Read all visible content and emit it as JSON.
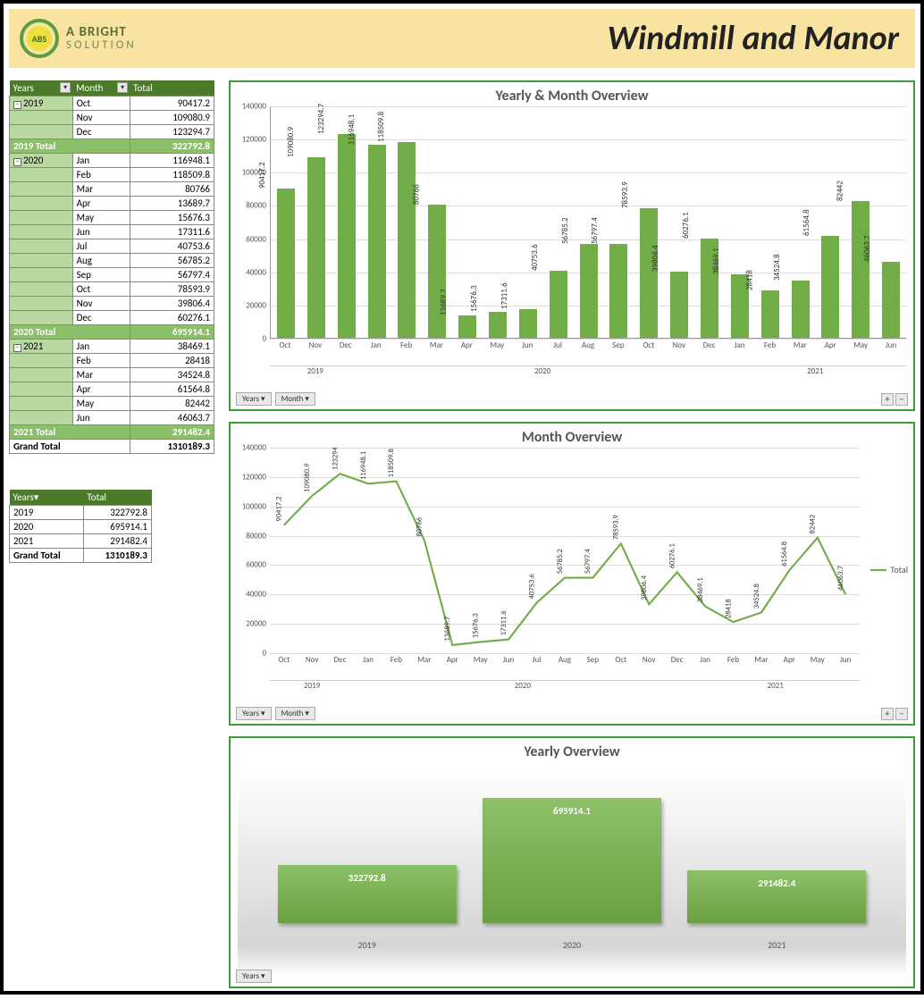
{
  "header": {
    "logo_badge": "ABS",
    "logo_line1": "A BRIGHT",
    "logo_line2": "SOLUTION",
    "title": "Windmill and Manor"
  },
  "colors": {
    "accent": "#70ad47",
    "accent_dark": "#4a7a2a",
    "accent_light": "#b8d8a0",
    "chart_border": "#3c9c3c",
    "header_bg": "#f8e3a1",
    "grid": "#dddddd",
    "text": "#333333"
  },
  "pivot": {
    "headers": [
      "Years",
      "Month",
      "Total"
    ],
    "rows": [
      {
        "year": "2019",
        "month": "Oct",
        "total": "90417.2",
        "first": true
      },
      {
        "year": "",
        "month": "Nov",
        "total": "109080.9"
      },
      {
        "year": "",
        "month": "Dec",
        "total": "123294.7"
      },
      {
        "subtotal": "2019 Total",
        "total": "322792.8"
      },
      {
        "year": "2020",
        "month": "Jan",
        "total": "116948.1",
        "first": true
      },
      {
        "year": "",
        "month": "Feb",
        "total": "118509.8"
      },
      {
        "year": "",
        "month": "Mar",
        "total": "80766"
      },
      {
        "year": "",
        "month": "Apr",
        "total": "13689.7"
      },
      {
        "year": "",
        "month": "May",
        "total": "15676.3"
      },
      {
        "year": "",
        "month": "Jun",
        "total": "17311.6"
      },
      {
        "year": "",
        "month": "Jul",
        "total": "40753.6"
      },
      {
        "year": "",
        "month": "Aug",
        "total": "56785.2"
      },
      {
        "year": "",
        "month": "Sep",
        "total": "56797.4"
      },
      {
        "year": "",
        "month": "Oct",
        "total": "78593.9"
      },
      {
        "year": "",
        "month": "Nov",
        "total": "39806.4"
      },
      {
        "year": "",
        "month": "Dec",
        "total": "60276.1"
      },
      {
        "subtotal": "2020 Total",
        "total": "695914.1"
      },
      {
        "year": "2021",
        "month": "Jan",
        "total": "38469.1",
        "first": true
      },
      {
        "year": "",
        "month": "Feb",
        "total": "28418"
      },
      {
        "year": "",
        "month": "Mar",
        "total": "34524.8"
      },
      {
        "year": "",
        "month": "Apr",
        "total": "61564.8"
      },
      {
        "year": "",
        "month": "May",
        "total": "82442"
      },
      {
        "year": "",
        "month": "Jun",
        "total": "46063.7"
      },
      {
        "subtotal": "2021 Total",
        "total": "291482.4"
      },
      {
        "grand": "Grand Total",
        "total": "1310189.3"
      }
    ]
  },
  "summary": {
    "headers": [
      "Years",
      "Total"
    ],
    "rows": [
      {
        "year": "2019",
        "total": "322792.8"
      },
      {
        "year": "2020",
        "total": "695914.1"
      },
      {
        "year": "2021",
        "total": "291482.4"
      }
    ],
    "grand_label": "Grand Total",
    "grand_total": "1310189.3"
  },
  "chart1": {
    "title": "Yearly & Month Overview",
    "type": "bar",
    "ylim": [
      0,
      140000
    ],
    "ytick_step": 20000,
    "bar_color": "#70ad47",
    "label_fontsize": 9,
    "months": [
      "Oct",
      "Nov",
      "Dec",
      "Jan",
      "Feb",
      "Mar",
      "Apr",
      "May",
      "Jun",
      "Jul",
      "Aug",
      "Sep",
      "Oct",
      "Nov",
      "Dec",
      "Jan",
      "Feb",
      "Mar",
      "Apr",
      "May",
      "Jun"
    ],
    "values": [
      90417.2,
      109080.9,
      123294.7,
      116948.1,
      118509.8,
      80766,
      13689.7,
      15676.3,
      17311.6,
      40753.6,
      56785.2,
      56797.4,
      78593.9,
      39806.4,
      60276.1,
      38469.1,
      28418,
      34524.8,
      61564.8,
      82442,
      46063.7
    ],
    "labels": [
      "90417.2",
      "109080.9",
      "123294.7",
      "116948.1",
      "118509.8",
      "80766",
      "13689.7",
      "15676.3",
      "17311.6",
      "40753.6",
      "56785.2",
      "56797.4",
      "78593.9",
      "39806.4",
      "60276.1",
      "38469.1",
      "28418",
      "34524.8",
      "61564.8",
      "82442",
      "46063.7"
    ],
    "year_groups": [
      {
        "label": "2019",
        "span": 3
      },
      {
        "label": "2020",
        "span": 12
      },
      {
        "label": "2021",
        "span": 6
      }
    ],
    "filters": [
      "Years",
      "Month"
    ]
  },
  "chart2": {
    "title": "Month Overview",
    "type": "line",
    "ylim": [
      0,
      140000
    ],
    "ytick_step": 20000,
    "line_color": "#70ad47",
    "line_width": 2,
    "legend_label": "Total",
    "months": [
      "Oct",
      "Nov",
      "Dec",
      "Jan",
      "Feb",
      "Mar",
      "Apr",
      "May",
      "Jun",
      "Jul",
      "Aug",
      "Sep",
      "Oct",
      "Nov",
      "Dec",
      "Jan",
      "Feb",
      "Mar",
      "Apr",
      "May",
      "Jun"
    ],
    "values": [
      90417.2,
      109080.9,
      123294.7,
      116948.1,
      118509.8,
      80766,
      13689.7,
      15676.3,
      17311.6,
      40753.6,
      56785.2,
      56797.4,
      78593.9,
      39806.4,
      60276.1,
      38469.1,
      28418,
      34524.8,
      61564.8,
      82442,
      46063.7
    ],
    "labels": [
      "90417.2",
      "109080.9",
      "123294.7",
      "116948.1",
      "118509.8",
      "80766",
      "13689.7",
      "15676.3",
      "17311.6",
      "40753.6",
      "56785.2",
      "56797.4",
      "78593.9",
      "39806.4",
      "60276.1",
      "38469.1",
      "28418",
      "34524.8",
      "61564.8",
      "82442",
      "46063.7"
    ],
    "year_groups": [
      {
        "label": "2019",
        "span": 3
      },
      {
        "label": "2020",
        "span": 12
      },
      {
        "label": "2021",
        "span": 6
      }
    ],
    "filters": [
      "Years",
      "Month"
    ]
  },
  "chart3": {
    "title": "Yearly Overview",
    "type": "bar",
    "bar_color_top": "#8cc168",
    "bar_color_bottom": "#6aa040",
    "years": [
      "2019",
      "2020",
      "2021"
    ],
    "values": [
      322792.8,
      695914.1,
      291482.4
    ],
    "labels": [
      "322792.8",
      "695914.1",
      "291482.4"
    ],
    "max": 695914.1,
    "filters": [
      "Years"
    ]
  }
}
